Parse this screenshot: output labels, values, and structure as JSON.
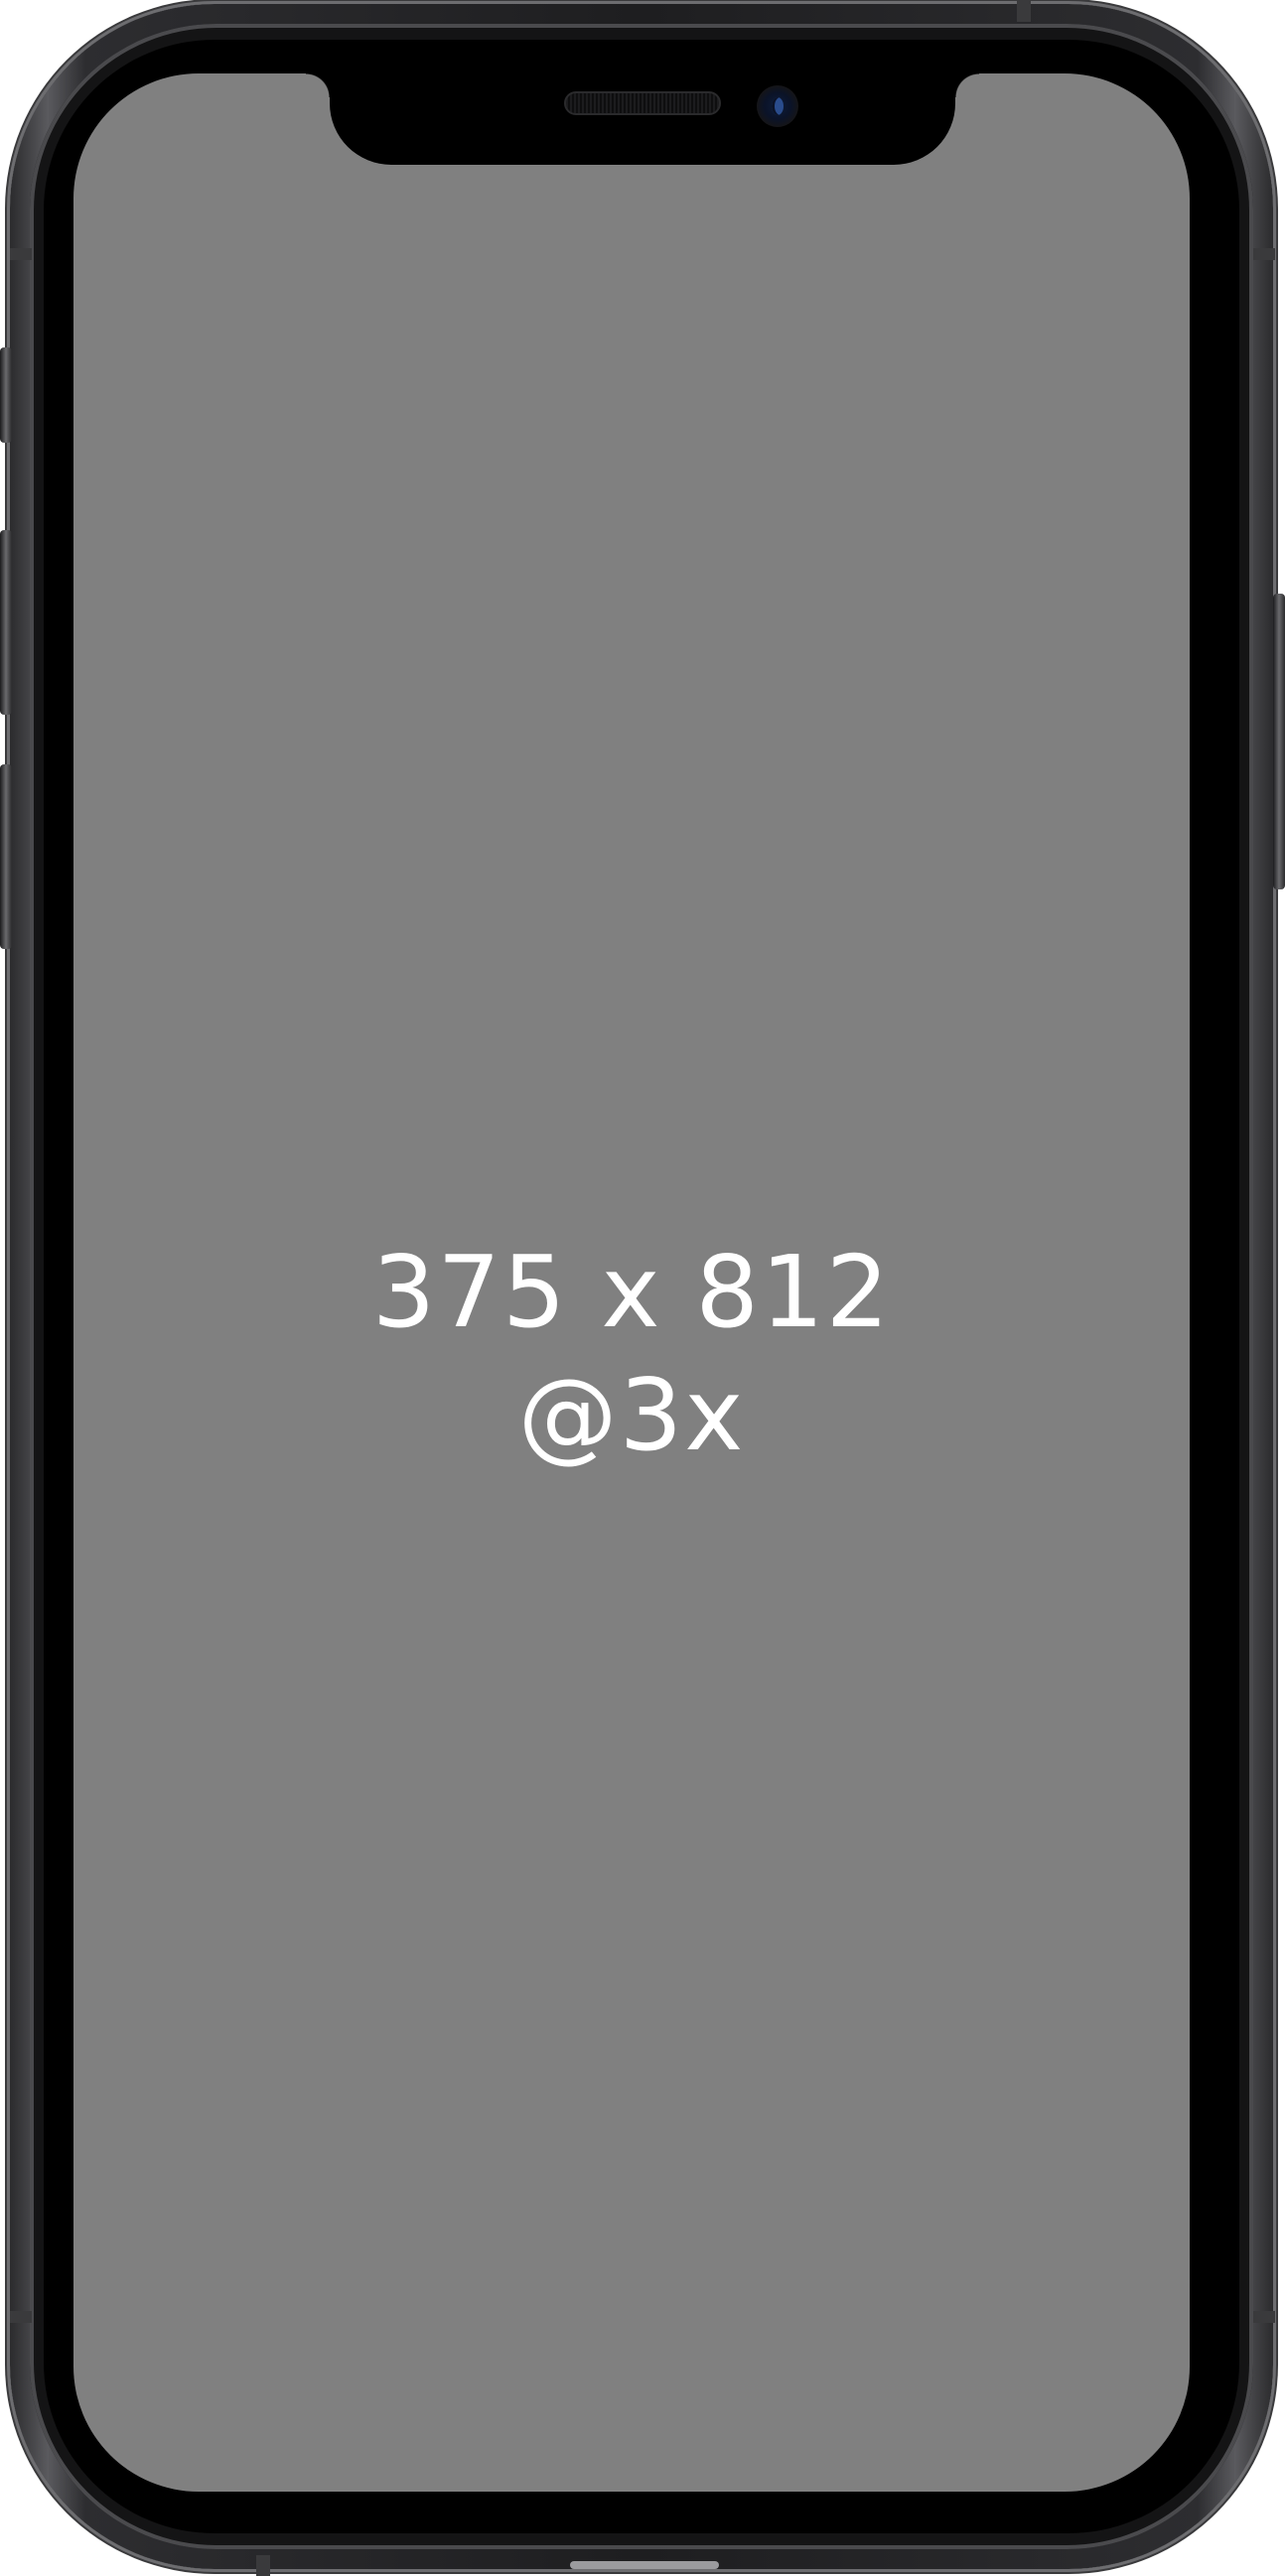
{
  "device": {
    "name": "iPhone",
    "frame_color": "#1e1e20",
    "screen_color": "#808080"
  },
  "screen": {
    "size_label": "375 x 812",
    "scale_label": "@3x",
    "text_color": "#ffffff"
  },
  "icons": {
    "speaker": "earpiece-speaker-icon",
    "camera": "front-camera-icon"
  }
}
